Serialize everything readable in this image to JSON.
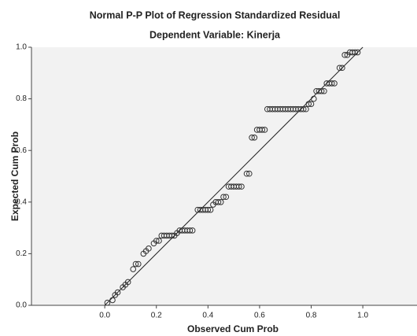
{
  "chart_data": {
    "type": "scatter",
    "title": "Normal P-P Plot of Regression Standardized Residual",
    "subtitle": "Dependent Variable: Kinerja",
    "x_label": "Observed Cum Prob",
    "y_label": "Expected Cum Prob",
    "x": [
      0.01,
      0.03,
      0.04,
      0.05,
      0.07,
      0.08,
      0.09,
      0.11,
      0.12,
      0.13,
      0.15,
      0.16,
      0.17,
      0.19,
      0.2,
      0.21,
      0.22,
      0.23,
      0.24,
      0.25,
      0.26,
      0.27,
      0.28,
      0.29,
      0.3,
      0.31,
      0.32,
      0.33,
      0.34,
      0.36,
      0.37,
      0.38,
      0.39,
      0.4,
      0.41,
      0.42,
      0.43,
      0.44,
      0.45,
      0.46,
      0.47,
      0.48,
      0.49,
      0.5,
      0.51,
      0.52,
      0.53,
      0.55,
      0.56,
      0.57,
      0.58,
      0.59,
      0.6,
      0.61,
      0.62,
      0.63,
      0.64,
      0.65,
      0.66,
      0.67,
      0.68,
      0.69,
      0.7,
      0.71,
      0.72,
      0.73,
      0.74,
      0.75,
      0.76,
      0.77,
      0.78,
      0.79,
      0.8,
      0.81,
      0.82,
      0.83,
      0.84,
      0.85,
      0.86,
      0.87,
      0.88,
      0.89,
      0.91,
      0.92,
      0.93,
      0.94,
      0.95,
      0.96,
      0.97,
      0.98
    ],
    "values": [
      0.01,
      0.02,
      0.04,
      0.05,
      0.07,
      0.08,
      0.09,
      0.14,
      0.16,
      0.16,
      0.2,
      0.21,
      0.22,
      0.24,
      0.25,
      0.25,
      0.27,
      0.27,
      0.27,
      0.27,
      0.27,
      0.27,
      0.28,
      0.29,
      0.29,
      0.29,
      0.29,
      0.29,
      0.29,
      0.37,
      0.37,
      0.37,
      0.37,
      0.37,
      0.37,
      0.39,
      0.4,
      0.4,
      0.4,
      0.42,
      0.42,
      0.46,
      0.46,
      0.46,
      0.46,
      0.46,
      0.46,
      0.51,
      0.51,
      0.65,
      0.65,
      0.68,
      0.68,
      0.68,
      0.68,
      0.76,
      0.76,
      0.76,
      0.76,
      0.76,
      0.76,
      0.76,
      0.76,
      0.76,
      0.76,
      0.76,
      0.76,
      0.76,
      0.76,
      0.76,
      0.76,
      0.78,
      0.78,
      0.8,
      0.83,
      0.83,
      0.83,
      0.83,
      0.86,
      0.86,
      0.86,
      0.86,
      0.92,
      0.92,
      0.97,
      0.97,
      0.98,
      0.98,
      0.98,
      0.98
    ],
    "marker_color": "#333333",
    "xlim": [
      -0.284,
      1.21
    ],
    "ylim": [
      0,
      1
    ],
    "xticks": [
      {
        "value": 0,
        "label": "0.0"
      },
      {
        "value": 0.2,
        "label": "0.2"
      },
      {
        "value": 0.4,
        "label": "0.4"
      },
      {
        "value": 0.6,
        "label": "0.6"
      },
      {
        "value": 0.8,
        "label": "0.8"
      },
      {
        "value": 1,
        "label": "1.0"
      }
    ],
    "yticks": [
      {
        "value": 0,
        "label": "0.0"
      },
      {
        "value": 0.2,
        "label": "0.2"
      },
      {
        "value": 0.4,
        "label": "0.4"
      },
      {
        "value": 0.6,
        "label": "0.6"
      },
      {
        "value": 0.8,
        "label": "0.8"
      },
      {
        "value": 1,
        "label": "1.0"
      }
    ]
  }
}
